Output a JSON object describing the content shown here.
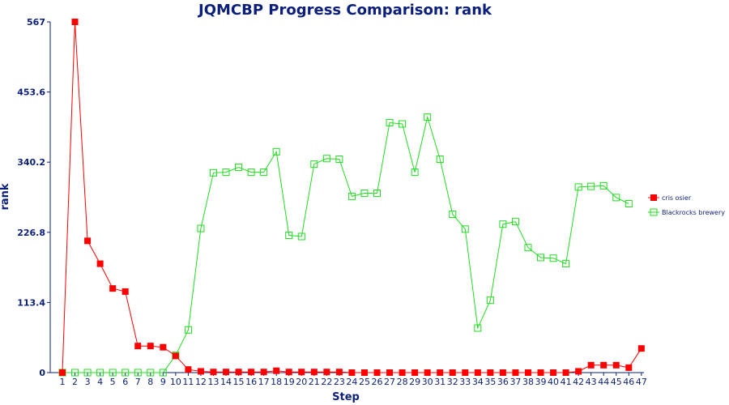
{
  "chart_data": {
    "type": "line",
    "title": "JQMCBP Progress Comparison: rank",
    "xlabel": "Step",
    "ylabel": "rank",
    "ylim": [
      0,
      567
    ],
    "yticks": [
      "0",
      "113.4",
      "226.8",
      "340.2",
      "453.6",
      "567"
    ],
    "x": [
      1,
      2,
      3,
      4,
      5,
      6,
      7,
      8,
      9,
      10,
      11,
      12,
      13,
      14,
      15,
      16,
      17,
      18,
      19,
      20,
      21,
      22,
      23,
      24,
      25,
      26,
      27,
      28,
      29,
      30,
      31,
      32,
      33,
      34,
      35,
      36,
      37,
      38,
      39,
      40,
      41,
      42,
      43,
      44,
      45,
      46,
      47
    ],
    "legend_position": "right",
    "grid": false,
    "series": [
      {
        "name": "cris osier",
        "color": "#ff0000",
        "marker": "filled-square",
        "values": [
          0,
          567,
          213,
          176,
          136,
          131,
          43,
          43,
          41,
          27,
          5,
          2,
          1,
          1,
          1,
          1,
          1,
          3,
          1,
          1,
          1,
          1,
          1,
          0,
          0,
          0,
          0,
          0,
          0,
          0,
          0,
          0,
          0,
          0,
          0,
          0,
          0,
          0,
          0,
          0,
          0,
          2,
          12,
          12,
          12,
          8,
          39
        ]
      },
      {
        "name": "Blackrocks brewery",
        "color": "#22dd22",
        "marker": "hollow-square",
        "values": [
          0,
          0,
          0,
          0,
          0,
          0,
          0,
          0,
          0,
          28,
          69,
          233,
          323,
          324,
          332,
          324,
          324,
          357,
          222,
          220,
          337,
          346,
          345,
          285,
          290,
          290,
          404,
          402,
          324,
          413,
          345,
          256,
          232,
          72,
          117,
          240,
          244,
          202,
          186,
          185,
          176,
          300,
          301,
          302,
          283,
          273,
          null
        ]
      }
    ]
  }
}
